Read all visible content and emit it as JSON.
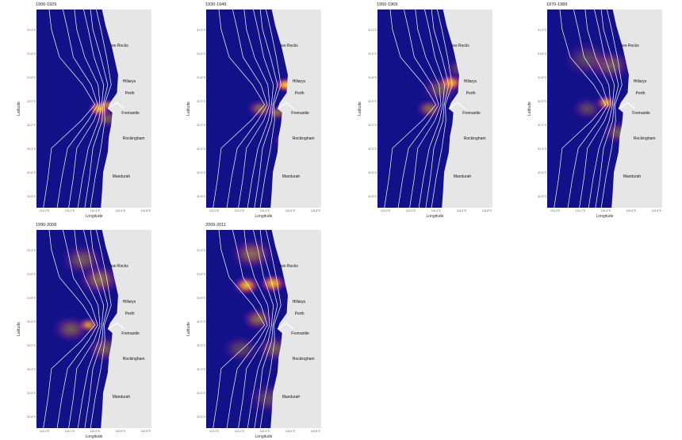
{
  "panels": [
    {
      "title": "1900-1929",
      "hotspots": [
        [
          0.55,
          0.5,
          0.9,
          9
        ],
        [
          0.62,
          0.48,
          0.6,
          6
        ],
        [
          0.68,
          0.67,
          0.7,
          6
        ],
        [
          0.62,
          0.55,
          0.4,
          10
        ]
      ]
    },
    {
      "title": "1930-1949",
      "hotspots": [
        [
          0.69,
          0.38,
          1.0,
          8
        ],
        [
          0.69,
          0.66,
          0.9,
          8
        ],
        [
          0.47,
          0.5,
          0.5,
          10
        ],
        [
          0.62,
          0.52,
          0.5,
          8
        ]
      ]
    },
    {
      "title": "1950-1969",
      "hotspots": [
        [
          0.64,
          0.37,
          1.0,
          9
        ],
        [
          0.45,
          0.5,
          0.5,
          10
        ],
        [
          0.55,
          0.4,
          0.4,
          14
        ],
        [
          0.72,
          0.3,
          0.3,
          12
        ]
      ]
    },
    {
      "title": "1970-1989",
      "hotspots": [
        [
          0.51,
          0.47,
          0.8,
          8
        ],
        [
          0.55,
          0.28,
          0.4,
          16
        ],
        [
          0.35,
          0.25,
          0.3,
          18
        ],
        [
          0.62,
          0.62,
          0.4,
          12
        ],
        [
          0.35,
          0.5,
          0.3,
          12
        ]
      ]
    },
    {
      "title": "1990-2008",
      "hotspots": [
        [
          0.45,
          0.48,
          0.8,
          8
        ],
        [
          0.8,
          0.36,
          0.9,
          7
        ],
        [
          0.55,
          0.25,
          0.5,
          16
        ],
        [
          0.4,
          0.15,
          0.4,
          16
        ],
        [
          0.6,
          0.6,
          0.4,
          14
        ],
        [
          0.3,
          0.5,
          0.4,
          14
        ]
      ]
    },
    {
      "title": "2009-2011",
      "hotspots": [
        [
          0.35,
          0.28,
          0.9,
          10
        ],
        [
          0.58,
          0.27,
          0.9,
          10
        ],
        [
          0.75,
          0.27,
          0.7,
          8
        ],
        [
          0.4,
          0.12,
          0.5,
          16
        ],
        [
          0.45,
          0.45,
          0.5,
          12
        ],
        [
          0.6,
          0.6,
          0.4,
          14
        ],
        [
          0.3,
          0.6,
          0.3,
          14
        ],
        [
          0.55,
          0.85,
          0.3,
          16
        ]
      ]
    }
  ],
  "axis": {
    "ylabel": "Latitude",
    "xlabel": "Longitude",
    "yticks": [
      "31.4°S",
      "31.6°S",
      "31.8°S",
      "32.0°S",
      "32.2°S",
      "32.4°S",
      "32.6°S",
      "32.8°S"
    ],
    "xticks": [
      "115.0°E",
      "115.2°E",
      "115.4°E",
      "115.6°E",
      "115.8°E"
    ]
  },
  "places": [
    "Two Rocks",
    "Hillarys",
    "Perth",
    "Fremantle",
    "Rockingham",
    "Mandurah"
  ],
  "colors": {
    "ocean": "#131188",
    "land": "#e6e6e6",
    "hot": "#fdd22a",
    "contour": "#ffffff"
  }
}
